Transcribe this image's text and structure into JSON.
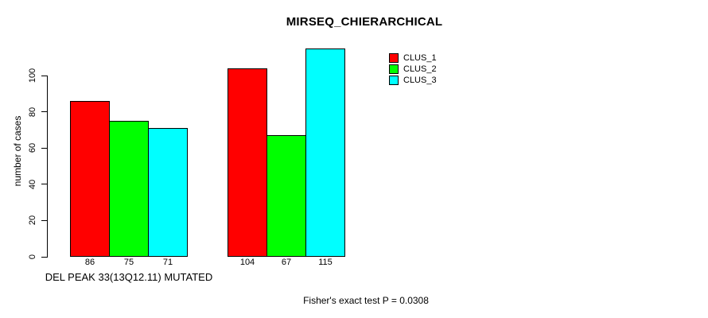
{
  "chart_data": {
    "type": "bar",
    "title": "MIRSEQ_CHIERARCHICAL",
    "ylabel": "number of cases",
    "annotation": "Fisher's exact test P = 0.0308",
    "categories": [
      "DEL PEAK 33(13Q12.11) MUTATED",
      ""
    ],
    "series": [
      {
        "name": "CLUS_1",
        "color": "#FF0000",
        "values": [
          86,
          104
        ]
      },
      {
        "name": "CLUS_2",
        "color": "#00FF00",
        "values": [
          75,
          67
        ]
      },
      {
        "name": "CLUS_3",
        "color": "#00FFFF",
        "values": [
          71,
          115
        ]
      }
    ],
    "yticks": [
      0,
      20,
      40,
      60,
      80,
      100
    ],
    "ylim": [
      0,
      115
    ],
    "grid": false,
    "legend_position": "top-right",
    "bar_value_labels": [
      [
        86,
        75,
        71
      ],
      [
        104,
        67,
        115
      ]
    ],
    "colors": {
      "background": "#FFFFFF",
      "axis": "#000000",
      "text": "#000000"
    }
  }
}
